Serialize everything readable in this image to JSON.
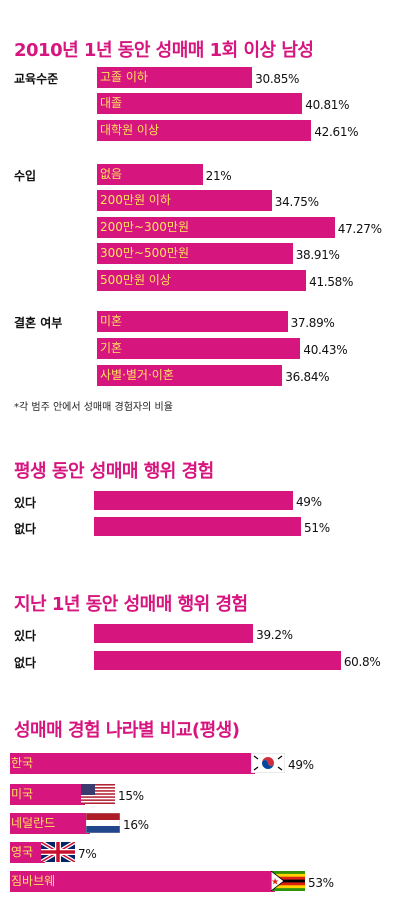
{
  "chart_data": [
    {
      "type": "bar",
      "title": "2010년 1년 동안 성매매 1회 이상 남성",
      "note": "*각 범주 안에서 성매매 경험자의 비율",
      "groups": [
        {
          "name": "교육수준",
          "categories": [
            "고졸 이하",
            "대졸",
            "대학원 이상"
          ],
          "values": [
            30.85,
            40.81,
            42.61
          ],
          "value_labels": [
            "30.85%",
            "40.81%",
            "42.61%"
          ]
        },
        {
          "name": "수입",
          "categories": [
            "없음",
            "200만원 이하",
            "200만~300만원",
            "300만~500만원",
            "500만원 이상"
          ],
          "values": [
            21,
            34.75,
            47.27,
            38.91,
            41.58
          ],
          "value_labels": [
            "21%",
            "34.75%",
            "47.27%",
            "38.91%",
            "41.58%"
          ]
        },
        {
          "name": "결혼 여부",
          "categories": [
            "미혼",
            "기혼",
            "사별·별거·이혼"
          ],
          "values": [
            37.89,
            40.43,
            36.84
          ],
          "value_labels": [
            "37.89%",
            "40.43%",
            "36.84%"
          ]
        }
      ]
    },
    {
      "type": "bar",
      "title": "평생 동안 성매매 행위 경험",
      "categories": [
        "있다",
        "없다"
      ],
      "values": [
        49,
        51
      ],
      "value_labels": [
        "49%",
        "51%"
      ]
    },
    {
      "type": "bar",
      "title": "지난 1년 동안 성매매 행위 경험",
      "categories": [
        "있다",
        "없다"
      ],
      "values": [
        39.2,
        60.8
      ],
      "value_labels": [
        "39.2%",
        "60.8%"
      ]
    },
    {
      "type": "bar",
      "title": "성매매 경험 나라별 비교(평생)",
      "categories": [
        "한국",
        "미국",
        "네덜란드",
        "영국",
        "짐바브웨"
      ],
      "values": [
        49,
        15,
        16,
        7,
        53
      ],
      "value_labels": [
        "49%",
        "15%",
        "16%",
        "7%",
        "53%"
      ],
      "flags": [
        "south-korea-flag-icon",
        "usa-flag-icon",
        "netherlands-flag-icon",
        "uk-flag-icon",
        "zimbabwe-flag-icon"
      ]
    }
  ],
  "colors": {
    "bar": "#d6157e",
    "bar_label": "#ffe35c",
    "title": "#d6157e"
  }
}
